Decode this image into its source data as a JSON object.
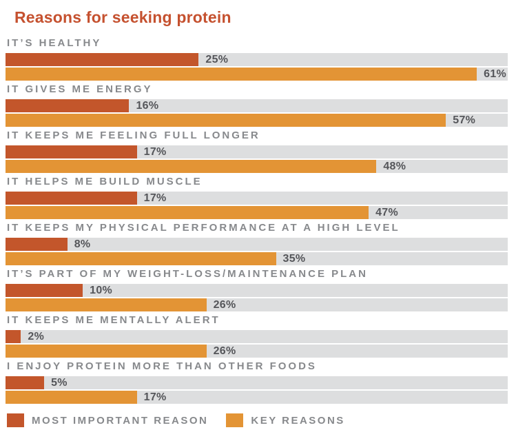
{
  "title": {
    "text": "Reasons for seeking protein",
    "color": "#C5512F"
  },
  "chart_data": {
    "type": "bar",
    "orientation": "horizontal",
    "title": "Reasons for seeking protein",
    "categories": [
      "IT’S HEALTHY",
      "IT GIVES ME ENERGY",
      "IT KEEPS ME FEELING FULL LONGER",
      "IT HELPS ME BUILD MUSCLE",
      "IT KEEPS MY PHYSICAL PERFORMANCE AT A HIGH LEVEL",
      "IT’S PART OF MY WEIGHT-LOSS/MAINTENANCE PLAN",
      "IT KEEPS ME MENTALLY ALERT",
      "I ENJOY PROTEIN MORE THAN OTHER FOODS"
    ],
    "series": [
      {
        "name": "MOST IMPORTANT REASON",
        "color": "#C3562B",
        "values": [
          25,
          16,
          17,
          17,
          8,
          10,
          2,
          5
        ]
      },
      {
        "name": "KEY REASONS",
        "color": "#E39435",
        "values": [
          61,
          57,
          48,
          47,
          35,
          26,
          26,
          17
        ]
      }
    ],
    "value_suffix": "%",
    "xmax": 65,
    "track_color": "#DDDEDF",
    "grid": false,
    "legend_position": "bottom"
  },
  "legend": {
    "items": [
      {
        "label": "MOST IMPORTANT REASON",
        "color": "#C3562B"
      },
      {
        "label": "KEY REASONS",
        "color": "#E39435"
      }
    ]
  },
  "styles": {
    "category_label_color": "#87898C",
    "value_label_color": "#55565A",
    "background": "#FFFFFF"
  }
}
